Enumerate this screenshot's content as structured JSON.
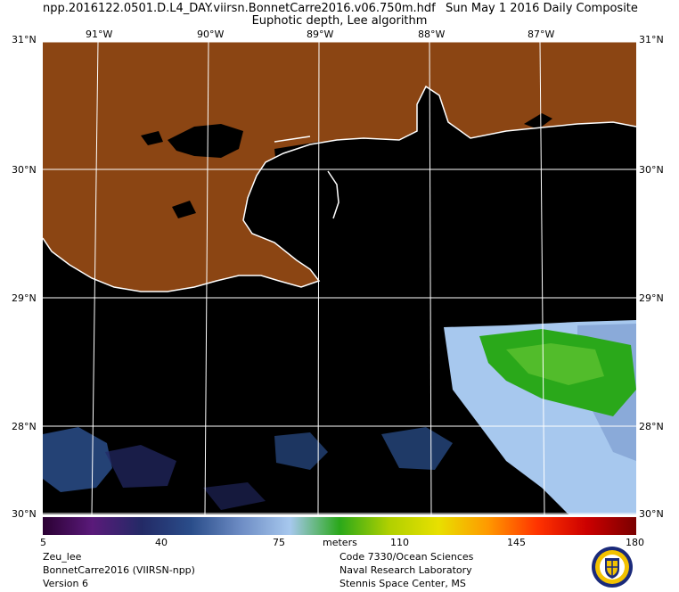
{
  "header": {
    "file_name": "npp.2016122.0501.D.L4_DAY.viirsn.BonnetCarre2016.v06.750m.hdf",
    "date_text": "Sun May  1 2016 Daily Composite",
    "product": "Euphotic depth, Lee algorithm"
  },
  "map": {
    "lat_labels_left": [
      "31°N",
      "30°N",
      "29°N",
      "28°N",
      "30°N"
    ],
    "lat_labels_right": [
      "31°N",
      "30°N",
      "29°N",
      "28°N",
      "30°N"
    ],
    "lon_labels_top": [
      "91°W",
      "90°W",
      "89°W",
      "88°W",
      "87°W"
    ],
    "land_color": "#8b4513",
    "water_color": "#000000",
    "coast_color": "#ffffff",
    "grid_color": "#ffffff"
  },
  "colorbar": {
    "min": 5,
    "max": 180,
    "tick_labels": [
      "5",
      "40",
      "75",
      "110",
      "145",
      "180"
    ],
    "units": "meters",
    "colors": [
      "#2b0033",
      "#5a1a7a",
      "#232a66",
      "#2a4d8a",
      "#6d8cc4",
      "#a7c8ee",
      "#2aa81a",
      "#b0d000",
      "#e8e000",
      "#ff9900",
      "#ff3300",
      "#cc0000",
      "#7a0000"
    ]
  },
  "footer": {
    "left_lines": [
      "Zeu_lee",
      "BonnetCarre2016 (VIIRSN-npp)",
      "Version 6"
    ],
    "right_lines": [
      "Code 7330/Ocean Sciences",
      "Naval Research Laboratory",
      "Stennis Space Center, MS"
    ],
    "logo_name": "nrl-seal"
  }
}
